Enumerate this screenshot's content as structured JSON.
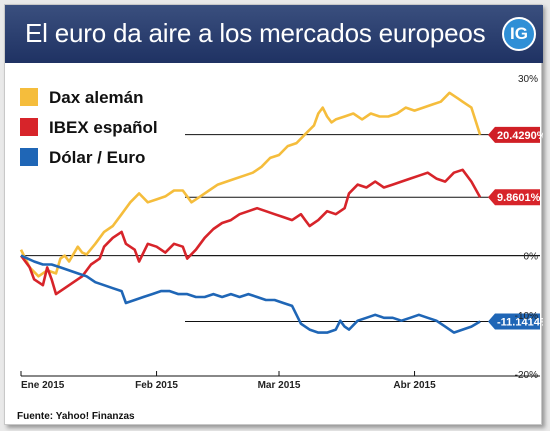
{
  "header": {
    "title": "El euro da aire a los mercados europeos",
    "logo": "IG"
  },
  "source": "Fuente: Yahoo! Finanzas",
  "colors": {
    "header": "#273a6c",
    "accent": "#2f8fd6"
  },
  "chart_data": {
    "type": "line",
    "title": "El euro da aire a los mercados europeos",
    "ylim": [
      -20,
      30
    ],
    "yticks": [
      {
        "value": 30,
        "label": "30%"
      },
      {
        "value": 0,
        "label": "0%"
      },
      {
        "value": -10,
        "label": "-10%"
      },
      {
        "value": -20,
        "label": "-20%"
      }
    ],
    "reference_lines": [
      20.429,
      9.8601,
      0,
      -11.1414
    ],
    "grid": false,
    "legend_position": "top-left",
    "xticks": [
      {
        "x": 0,
        "label": "Ene 2015"
      },
      {
        "x": 31,
        "label": "Feb 2015"
      },
      {
        "x": 59,
        "label": "Mar 2015"
      },
      {
        "x": 90,
        "label": "Abr 2015"
      }
    ],
    "xlim": [
      0,
      110
    ],
    "series": [
      {
        "name": "Dax alemán",
        "color": "#f5bd3c",
        "end_label": "20.4290%",
        "points": [
          [
            0,
            1
          ],
          [
            2,
            -2
          ],
          [
            4,
            -3.5
          ],
          [
            6,
            -2.5
          ],
          [
            8,
            -3
          ],
          [
            9,
            -0.5
          ],
          [
            10,
            0
          ],
          [
            11,
            -1
          ],
          [
            13,
            1.5
          ],
          [
            14,
            0.5
          ],
          [
            15,
            0.2
          ],
          [
            17,
            2
          ],
          [
            19,
            4
          ],
          [
            21,
            5
          ],
          [
            23,
            7
          ],
          [
            25,
            9
          ],
          [
            27,
            10.5
          ],
          [
            29,
            9
          ],
          [
            31,
            9.5
          ],
          [
            33,
            10
          ],
          [
            35,
            11
          ],
          [
            37,
            11
          ],
          [
            39,
            9
          ],
          [
            41,
            10
          ],
          [
            43,
            11
          ],
          [
            45,
            12
          ],
          [
            47,
            12.5
          ],
          [
            49,
            13
          ],
          [
            51,
            13.5
          ],
          [
            53,
            14
          ],
          [
            55,
            15
          ],
          [
            57,
            16.5
          ],
          [
            59,
            17
          ],
          [
            61,
            18.5
          ],
          [
            63,
            19
          ],
          [
            65,
            20.5
          ],
          [
            67,
            22
          ],
          [
            68,
            24
          ],
          [
            69,
            25
          ],
          [
            70,
            23.5
          ],
          [
            71,
            22.5
          ],
          [
            72,
            23
          ],
          [
            74,
            23.5
          ],
          [
            76,
            24
          ],
          [
            78,
            23
          ],
          [
            80,
            24
          ],
          [
            82,
            23.5
          ],
          [
            84,
            23.5
          ],
          [
            86,
            24
          ],
          [
            88,
            25
          ],
          [
            90,
            24.5
          ],
          [
            92,
            25
          ],
          [
            94,
            25.5
          ],
          [
            96,
            26
          ],
          [
            98,
            27.5
          ],
          [
            100,
            26.5
          ],
          [
            101,
            26
          ],
          [
            103,
            25
          ],
          [
            105,
            20.4
          ]
        ]
      },
      {
        "name": "IBEX español",
        "color": "#d7242a",
        "end_label": "9.8601%",
        "points": [
          [
            0,
            0
          ],
          [
            2,
            -2
          ],
          [
            3,
            -4
          ],
          [
            5,
            -5
          ],
          [
            6,
            -2
          ],
          [
            7,
            -4
          ],
          [
            8,
            -6.5
          ],
          [
            10,
            -5.5
          ],
          [
            12,
            -4.5
          ],
          [
            14,
            -3.5
          ],
          [
            16,
            -1.5
          ],
          [
            18,
            -0.5
          ],
          [
            19,
            1.5
          ],
          [
            21,
            3
          ],
          [
            23,
            4
          ],
          [
            24,
            2
          ],
          [
            26,
            1
          ],
          [
            27,
            -1
          ],
          [
            29,
            2
          ],
          [
            31,
            1.5
          ],
          [
            33,
            0.5
          ],
          [
            35,
            2
          ],
          [
            37,
            1.5
          ],
          [
            38,
            -0.5
          ],
          [
            40,
            1
          ],
          [
            42,
            3
          ],
          [
            44,
            4.5
          ],
          [
            46,
            5.5
          ],
          [
            48,
            6
          ],
          [
            50,
            7
          ],
          [
            52,
            7.5
          ],
          [
            54,
            8
          ],
          [
            56,
            7.5
          ],
          [
            58,
            7
          ],
          [
            60,
            6.5
          ],
          [
            62,
            6
          ],
          [
            64,
            7
          ],
          [
            65,
            6
          ],
          [
            66,
            5
          ],
          [
            68,
            6
          ],
          [
            70,
            7.5
          ],
          [
            72,
            7
          ],
          [
            74,
            8
          ],
          [
            75,
            10.5
          ],
          [
            77,
            12
          ],
          [
            79,
            11.5
          ],
          [
            81,
            12.5
          ],
          [
            83,
            11.5
          ],
          [
            85,
            12
          ],
          [
            87,
            12.5
          ],
          [
            89,
            13
          ],
          [
            91,
            13.5
          ],
          [
            93,
            14
          ],
          [
            95,
            13
          ],
          [
            97,
            12.5
          ],
          [
            99,
            14
          ],
          [
            101,
            14.5
          ],
          [
            103,
            12.5
          ],
          [
            105,
            9.86
          ]
        ]
      },
      {
        "name": "Dólar / Euro",
        "color": "#1f66b6",
        "end_label": "-11.1414%",
        "points": [
          [
            0,
            0
          ],
          [
            3,
            -1
          ],
          [
            5,
            -1.5
          ],
          [
            7,
            -1.5
          ],
          [
            9,
            -2
          ],
          [
            11,
            -2.5
          ],
          [
            13,
            -3
          ],
          [
            15,
            -3.5
          ],
          [
            17,
            -4.5
          ],
          [
            19,
            -5
          ],
          [
            21,
            -5.5
          ],
          [
            23,
            -6
          ],
          [
            24,
            -8
          ],
          [
            26,
            -7.5
          ],
          [
            28,
            -7
          ],
          [
            30,
            -6.5
          ],
          [
            32,
            -6
          ],
          [
            34,
            -6
          ],
          [
            36,
            -6.5
          ],
          [
            38,
            -6.5
          ],
          [
            40,
            -7
          ],
          [
            42,
            -7
          ],
          [
            44,
            -6.5
          ],
          [
            46,
            -7
          ],
          [
            48,
            -6.5
          ],
          [
            50,
            -7
          ],
          [
            52,
            -6.5
          ],
          [
            54,
            -7
          ],
          [
            56,
            -7.5
          ],
          [
            58,
            -7.5
          ],
          [
            60,
            -8
          ],
          [
            62,
            -8.5
          ],
          [
            63,
            -10
          ],
          [
            64,
            -11.5
          ],
          [
            66,
            -12.5
          ],
          [
            68,
            -13
          ],
          [
            70,
            -13
          ],
          [
            72,
            -12.5
          ],
          [
            73,
            -11
          ],
          [
            74,
            -12
          ],
          [
            75,
            -12.5
          ],
          [
            77,
            -11
          ],
          [
            79,
            -10.5
          ],
          [
            81,
            -10
          ],
          [
            83,
            -10.5
          ],
          [
            85,
            -10.5
          ],
          [
            87,
            -11
          ],
          [
            89,
            -10.5
          ],
          [
            91,
            -10
          ],
          [
            93,
            -10.5
          ],
          [
            95,
            -11
          ],
          [
            97,
            -12
          ],
          [
            99,
            -13
          ],
          [
            101,
            -12.5
          ],
          [
            103,
            -12
          ],
          [
            105,
            -11.14
          ]
        ]
      }
    ]
  }
}
